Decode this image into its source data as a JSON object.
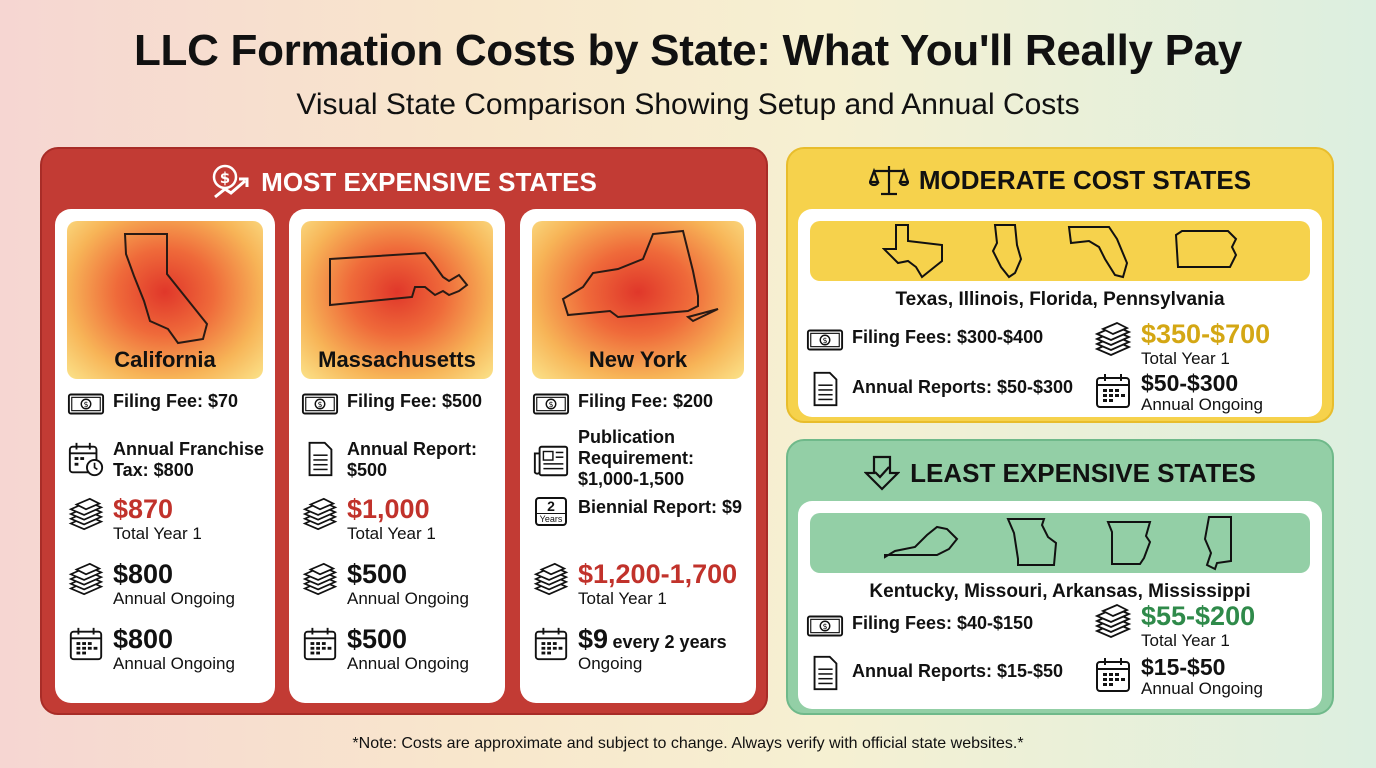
{
  "title": "LLC Formation Costs by State: What You'll Really Pay",
  "subtitle": "Visual State Comparison Showing Setup and Annual Costs",
  "colors": {
    "expensive": "#c23b34",
    "moderate": "#f6d24c",
    "least": "#93cfa6",
    "highlight_red": "#c1322b",
    "highlight_gold": "#d4a714",
    "highlight_green": "#2f8a4a"
  },
  "expensive": {
    "heading": "MOST EXPENSIVE STATES",
    "icon": "money-trend-up-icon",
    "states": [
      {
        "name": "California",
        "rows": [
          {
            "icon": "dollar-bill-icon",
            "label": "Filing Fee: $70"
          },
          {
            "icon": "calendar-clock-icon",
            "label": "Annual Franchise Tax: $800"
          },
          {
            "icon": "money-stack-icon",
            "value": "$870",
            "caption": "Total Year 1"
          },
          {
            "icon": "money-stack-icon",
            "value": "$800",
            "caption": "Annual Ongoing"
          },
          {
            "icon": "calendar-icon",
            "value": "$800",
            "caption": "Annual Ongoing"
          }
        ]
      },
      {
        "name": "Massachusetts",
        "rows": [
          {
            "icon": "dollar-bill-icon",
            "label": "Filing Fee: $500"
          },
          {
            "icon": "document-icon",
            "label": "Annual Report: $500"
          },
          {
            "icon": "money-stack-icon",
            "value": "$1,000",
            "caption": "Total Year 1"
          },
          {
            "icon": "money-stack-icon",
            "value": "$500",
            "caption": "Annual Ongoing"
          },
          {
            "icon": "calendar-icon",
            "value": "$500",
            "caption": "Annual Ongoing"
          }
        ]
      },
      {
        "name": "New York",
        "rows": [
          {
            "icon": "dollar-bill-icon",
            "label": "Filing Fee: $200"
          },
          {
            "icon": "newspaper-icon",
            "label": "Publication Requirement: $1,000-1,500"
          },
          {
            "icon": "two-years-icon",
            "label": "Biennial Report: $9",
            "icon_text": "2",
            "icon_caption": "Years"
          },
          {
            "icon": "money-stack-icon",
            "value": "$1,200-1,700",
            "caption": "Total Year 1"
          },
          {
            "icon": "calendar-icon",
            "value": "$9",
            "value_suffix": "every 2 years",
            "caption": "Ongoing"
          }
        ]
      }
    ]
  },
  "moderate": {
    "heading": "MODERATE COST STATES",
    "icon": "scales-icon",
    "states": "Texas, Illinois, Florida, Pennsylvania",
    "filing": "Filing Fees: $300-$400",
    "reports": "Annual Reports: $50-$300",
    "total_value": "$350-$700",
    "total_caption": "Total Year 1",
    "ongoing_value": "$50-$300",
    "ongoing_caption": "Annual Ongoing"
  },
  "least": {
    "heading": "LEAST EXPENSIVE STATES",
    "icon": "down-arrow-check-icon",
    "states": "Kentucky, Missouri, Arkansas, Mississippi",
    "filing": "Filing Fees: $40-$150",
    "reports": "Annual Reports: $15-$50",
    "total_value": "$55-$200",
    "total_caption": "Total Year 1",
    "ongoing_value": "$15-$50",
    "ongoing_caption": "Annual Ongoing"
  },
  "note": "*Note: Costs are approximate and subject to change. Always verify with official state websites.*"
}
